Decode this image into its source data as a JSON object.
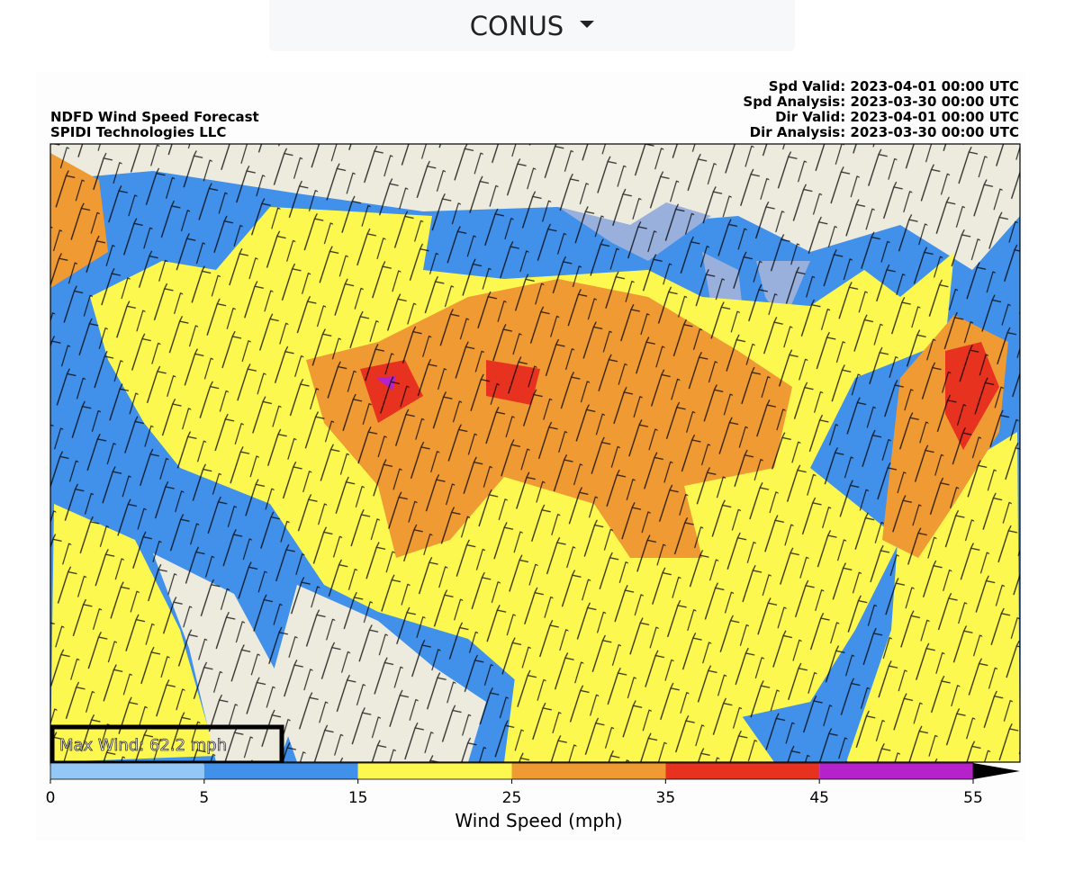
{
  "dropdown": {
    "label": "CONUS"
  },
  "map": {
    "title_left": [
      "NDFD Wind Speed Forecast",
      "SPIDI Technologies LLC"
    ],
    "title_right": [
      "Spd Valid: 2023-04-01 00:00 UTC",
      "Spd Analysis: 2023-03-30 00:00 UTC",
      "Dir Valid: 2023-04-01 00:00 UTC",
      "Dir Analysis: 2023-03-30 00:00 UTC"
    ],
    "max_wind": "Max Wind: 62.2 mph"
  },
  "colorbar": {
    "label": "Wind Speed (mph)",
    "bounds": [
      0,
      5,
      15,
      25,
      35,
      45,
      55
    ],
    "colors": [
      "#93c8f6",
      "#4190ea",
      "#fdf84f",
      "#f09a33",
      "#e6321e",
      "#b522c9"
    ]
  }
}
